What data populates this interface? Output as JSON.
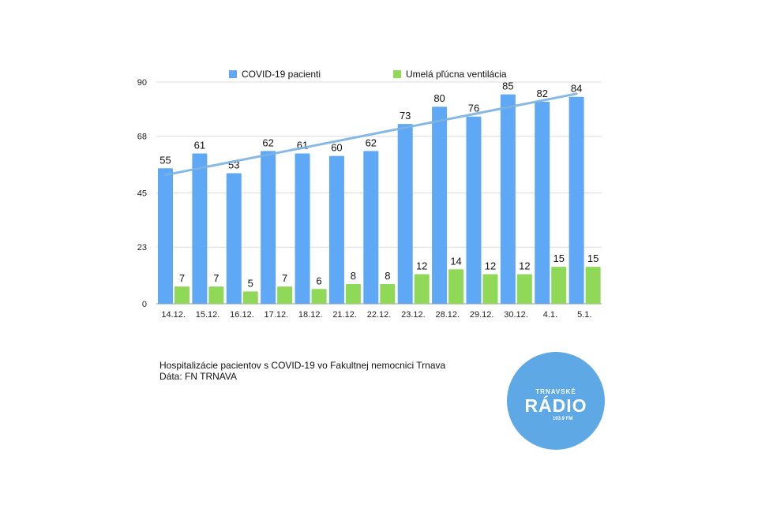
{
  "chart_data": {
    "type": "bar",
    "categories": [
      "14.12.",
      "15.12.",
      "16.12.",
      "17.12.",
      "18.12.",
      "21.12.",
      "22.12.",
      "23.12.",
      "28.12.",
      "29.12.",
      "30.12.",
      "4.1.",
      "5.1."
    ],
    "series": [
      {
        "name": "COVID-19 pacienti",
        "color": "#5ea8f5",
        "values": [
          55,
          61,
          53,
          62,
          61,
          60,
          62,
          73,
          80,
          76,
          85,
          82,
          84
        ]
      },
      {
        "name": "Umelá pľúcna ventilácia",
        "color": "#8fd858",
        "values": [
          7,
          7,
          5,
          7,
          6,
          8,
          8,
          12,
          14,
          12,
          12,
          15,
          15
        ]
      }
    ],
    "trendline": {
      "series": "COVID-19 pacienti",
      "type": "linear",
      "color": "#7bb2e2"
    },
    "yticks": [
      0,
      23,
      45,
      68,
      90
    ],
    "ylim": [
      0,
      90
    ],
    "grid": true,
    "legend": "top",
    "xlabel": "",
    "ylabel": "",
    "title": ""
  },
  "caption": {
    "line1": "Hospitalizácie pacientov s COVID-19 vo Fakultnej nemocnici Trnava",
    "line2": "Dáta: FN TRNAVA"
  },
  "logo": {
    "top": "TRNAVSKÉ",
    "main": "RÁDIO",
    "freq": "103.9 FM"
  }
}
